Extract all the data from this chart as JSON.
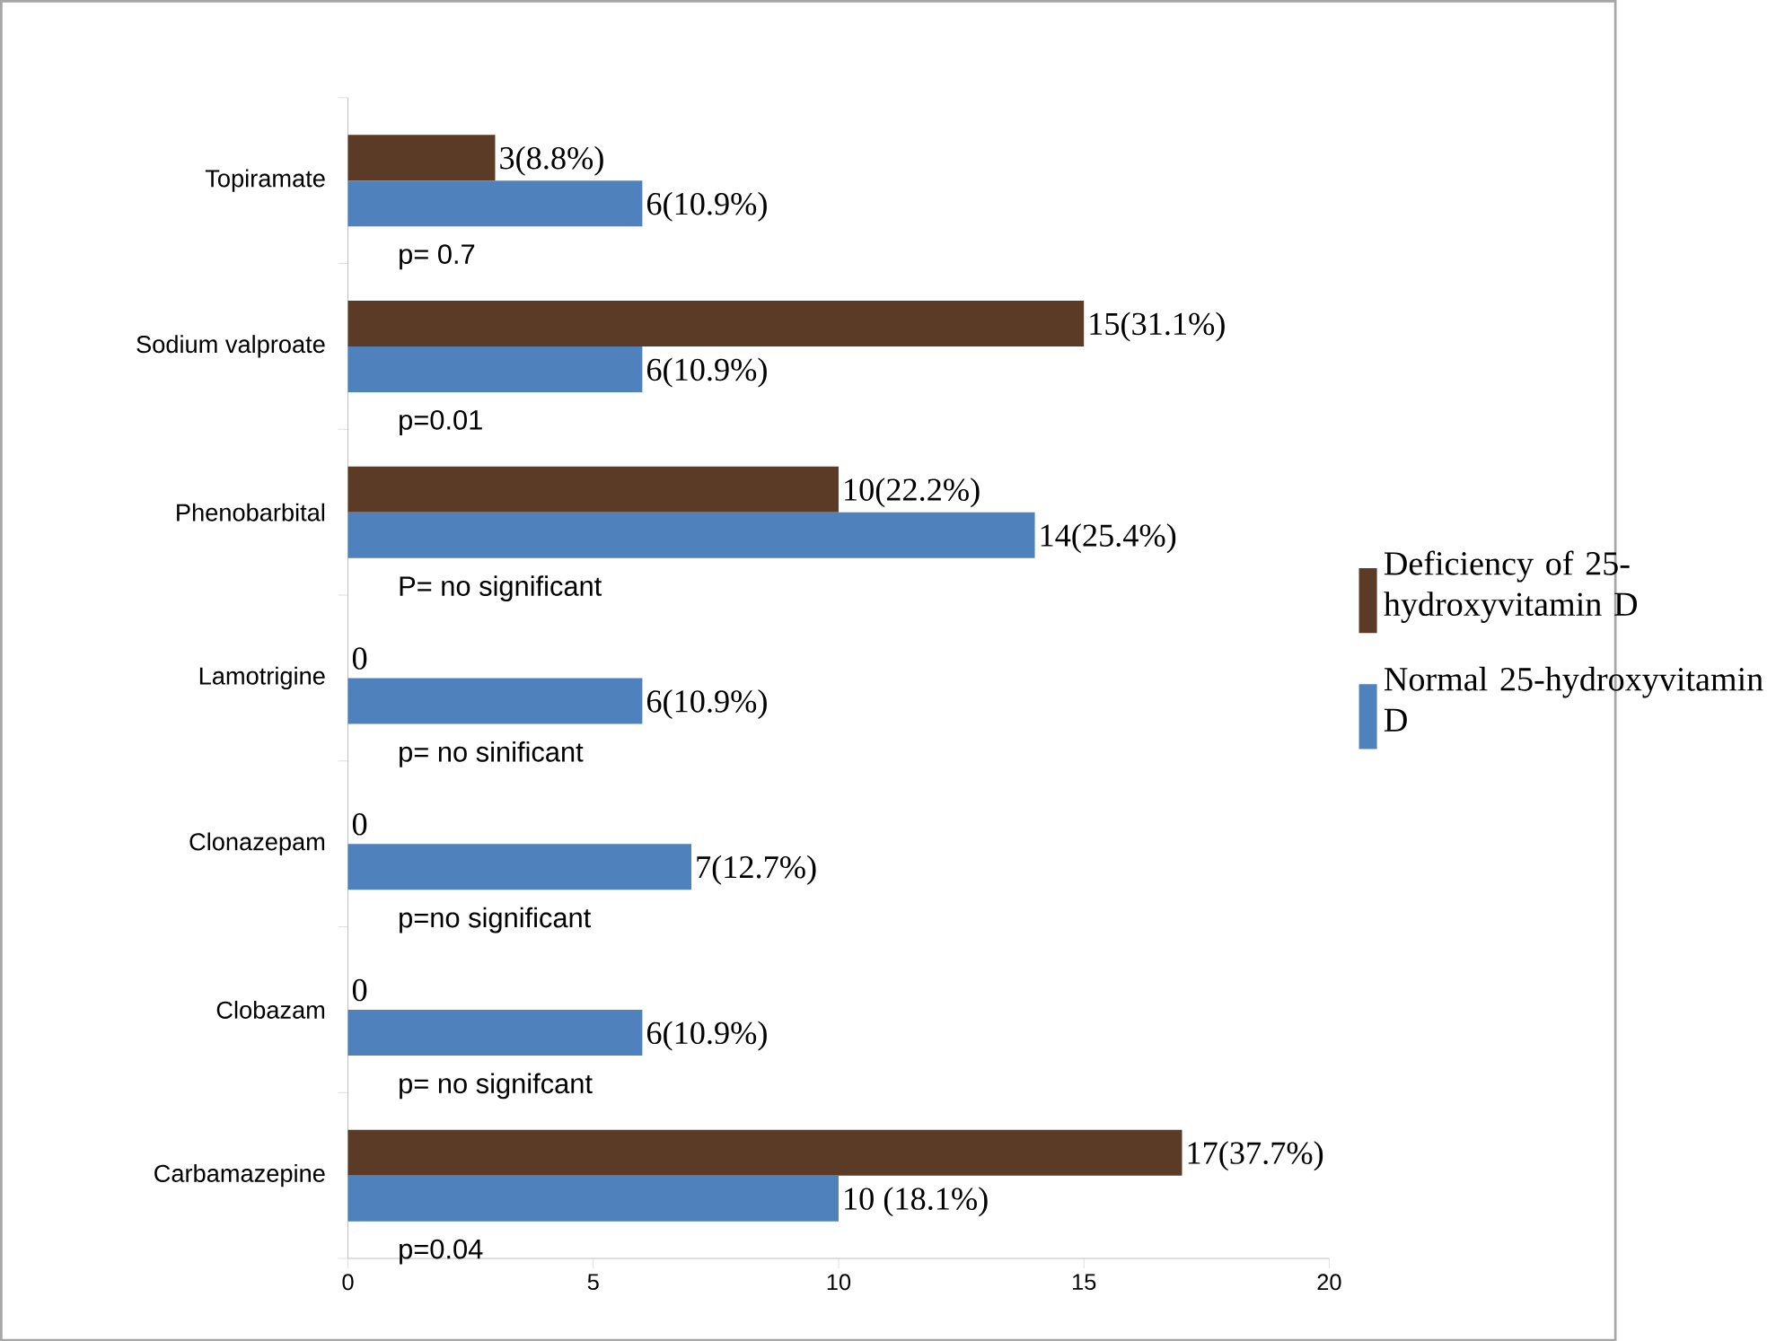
{
  "chart_data": {
    "type": "bar",
    "orientation": "horizontal",
    "categories": [
      "Topiramate",
      "Sodium valproate",
      "Phenobarbital",
      "Lamotrigine",
      "Clonazepam",
      "Clobazam",
      "Carbamazepine"
    ],
    "series": [
      {
        "name": "Deficiency of 25-hydroxyvitamin D",
        "color": "#5b3b26",
        "values": [
          3,
          15,
          10,
          0,
          0,
          0,
          17
        ],
        "value_labels": [
          "3(8.8%)",
          "15(31.1%)",
          "10(22.2%)",
          "0",
          "0",
          "0",
          "17(37.7%)"
        ]
      },
      {
        "name": "Normal 25-hydroxyvitamin D",
        "color": "#4f81bd",
        "values": [
          6,
          6,
          14,
          6,
          7,
          6,
          10
        ],
        "value_labels": [
          "6(10.9%)",
          "6(10.9%)",
          "14(25.4%)",
          "6(10.9%)",
          "7(12.7%)",
          "6(10.9%)",
          "10 (18.1%)"
        ]
      }
    ],
    "annotations": [
      "p= 0.7",
      "p=0.01",
      "P= no  significant",
      "p= no sinificant",
      "p=no significant",
      "p= no  signifcant",
      "p=0.04"
    ],
    "xlim": [
      0,
      20
    ],
    "xticks": [
      0,
      5,
      10,
      15,
      20
    ],
    "grid": false,
    "legend": "right"
  }
}
